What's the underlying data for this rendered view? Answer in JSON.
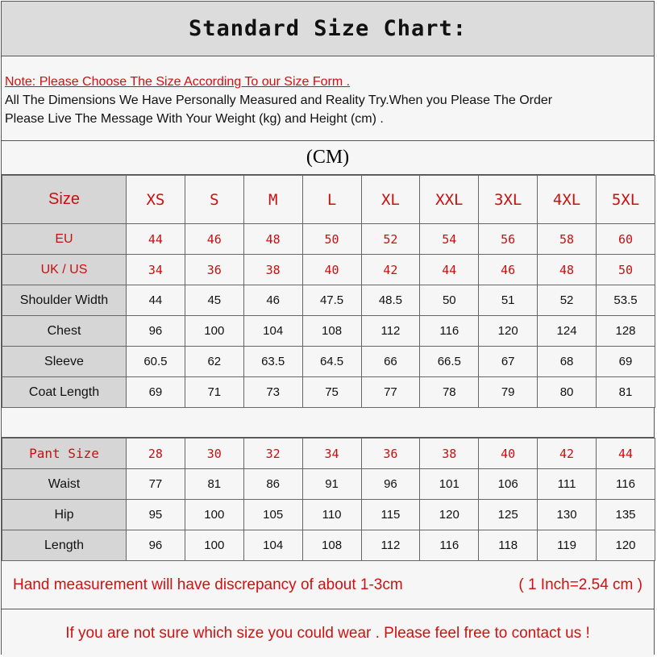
{
  "title": "Standard Size Chart:",
  "note": {
    "red": "Note: Please Choose The Size According To our Size Form .",
    "line1": "All The Dimensions We Have Personally Measured and Reality Try.When you Please The Order",
    "line2": "Please Live The Message With Your Weight (kg) and Height (cm) ."
  },
  "unit": "(CM)",
  "coat_table": {
    "header": [
      "Size",
      "XS",
      "S",
      "M",
      "L",
      "XL",
      "XXL",
      "3XL",
      "4XL",
      "5XL"
    ],
    "rows": [
      {
        "cells": [
          "EU",
          "44",
          "46",
          "48",
          "50",
          "52",
          "54",
          "56",
          "58",
          "60"
        ],
        "highlight": true
      },
      {
        "cells": [
          "UK / US",
          "34",
          "36",
          "38",
          "40",
          "42",
          "44",
          "46",
          "48",
          "50"
        ],
        "highlight": true
      },
      {
        "cells": [
          "Shoulder Width",
          "44",
          "45",
          "46",
          "47.5",
          "48.5",
          "50",
          "51",
          "52",
          "53.5"
        ]
      },
      {
        "cells": [
          "Chest",
          "96",
          "100",
          "104",
          "108",
          "112",
          "116",
          "120",
          "124",
          "128"
        ]
      },
      {
        "cells": [
          "Sleeve",
          "60.5",
          "62",
          "63.5",
          "64.5",
          "66",
          "66.5",
          "67",
          "68",
          "69"
        ]
      },
      {
        "cells": [
          "Coat Length",
          "69",
          "71",
          "73",
          "75",
          "77",
          "78",
          "79",
          "80",
          "81"
        ]
      }
    ]
  },
  "pant_table": {
    "rows": [
      {
        "cells": [
          "Pant Size",
          "28",
          "30",
          "32",
          "34",
          "36",
          "38",
          "40",
          "42",
          "44"
        ],
        "highlight": true
      },
      {
        "cells": [
          "Waist",
          "77",
          "81",
          "86",
          "91",
          "96",
          "101",
          "106",
          "111",
          "116"
        ]
      },
      {
        "cells": [
          "Hip",
          "95",
          "100",
          "105",
          "110",
          "115",
          "120",
          "125",
          "130",
          "135"
        ]
      },
      {
        "cells": [
          "Length",
          "96",
          "100",
          "104",
          "108",
          "112",
          "116",
          "118",
          "119",
          "120"
        ]
      }
    ]
  },
  "footer": {
    "discrepancy": "Hand measurement will have discrepancy of about 1-3cm",
    "conversion": "( 1 Inch=2.54 cm )",
    "contact": "If you are not sure which size you could wear . Please feel free to contact us !"
  },
  "colors": {
    "accent_red": "#c81010",
    "label_bg": "#d6d6d6",
    "title_bg": "#dcdcdc"
  }
}
